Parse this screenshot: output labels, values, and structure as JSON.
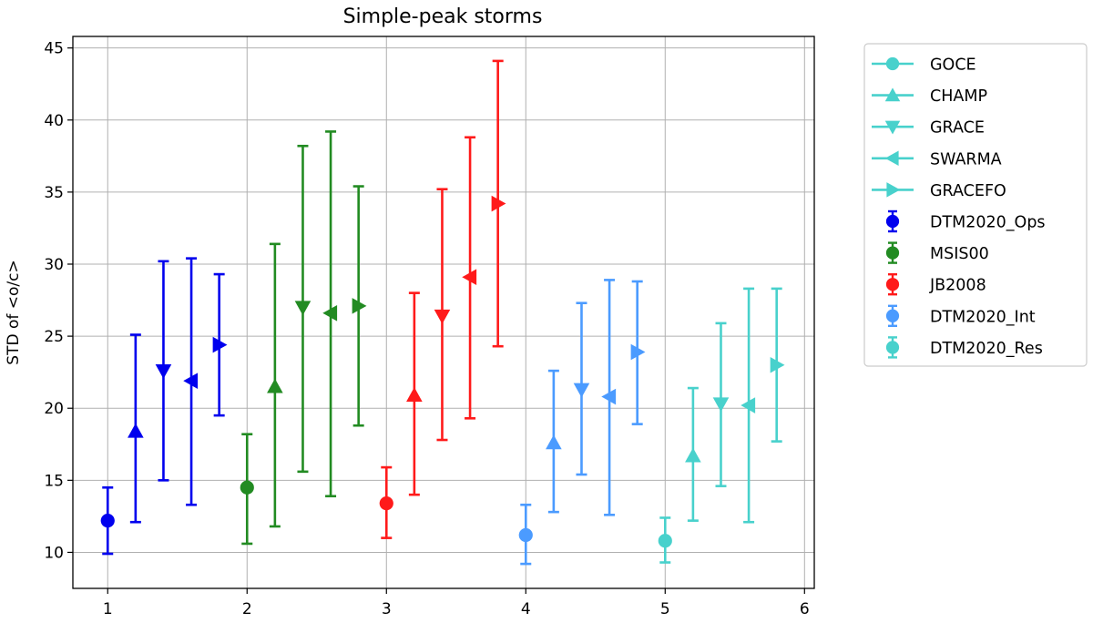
{
  "chart_data": {
    "type": "scatter",
    "title": "Simple-peak storms",
    "xlabel": "",
    "ylabel": "STD of <o/c>",
    "xlim": [
      0.75,
      6.07
    ],
    "ylim": [
      7.5,
      45.8
    ],
    "xticks": [
      1,
      2,
      3,
      4,
      5,
      6
    ],
    "yticks": [
      10,
      15,
      20,
      25,
      30,
      35,
      40,
      45
    ],
    "grid": true,
    "legend_position": "outside-top-right",
    "satellites": [
      {
        "name": "GOCE",
        "marker": "circle"
      },
      {
        "name": "CHAMP",
        "marker": "triangle-up"
      },
      {
        "name": "GRACE",
        "marker": "triangle-down"
      },
      {
        "name": "SWARMA",
        "marker": "triangle-left"
      },
      {
        "name": "GRACEFO",
        "marker": "triangle-right"
      }
    ],
    "satellite_legend_color": "#48d1cc",
    "series": [
      {
        "name": "DTM2020_Ops",
        "color": "#0000ee",
        "points": [
          {
            "x": 1.0,
            "y": 12.2,
            "lo": 9.9,
            "hi": 14.5
          },
          {
            "x": 1.2,
            "y": 18.4,
            "lo": 12.1,
            "hi": 25.1
          },
          {
            "x": 1.4,
            "y": 22.6,
            "lo": 15.0,
            "hi": 30.2
          },
          {
            "x": 1.6,
            "y": 21.9,
            "lo": 13.3,
            "hi": 30.4
          },
          {
            "x": 1.8,
            "y": 24.4,
            "lo": 19.5,
            "hi": 29.3
          }
        ]
      },
      {
        "name": "MSIS00",
        "color": "#228b22",
        "points": [
          {
            "x": 2.0,
            "y": 14.5,
            "lo": 10.6,
            "hi": 18.2
          },
          {
            "x": 2.2,
            "y": 21.5,
            "lo": 11.8,
            "hi": 31.4
          },
          {
            "x": 2.4,
            "y": 27.0,
            "lo": 15.6,
            "hi": 38.2
          },
          {
            "x": 2.6,
            "y": 26.6,
            "lo": 13.9,
            "hi": 39.2
          },
          {
            "x": 2.8,
            "y": 27.1,
            "lo": 18.8,
            "hi": 35.4
          }
        ]
      },
      {
        "name": "JB2008",
        "color": "#ff1a1a",
        "points": [
          {
            "x": 3.0,
            "y": 13.4,
            "lo": 11.0,
            "hi": 15.9
          },
          {
            "x": 3.2,
            "y": 20.9,
            "lo": 14.0,
            "hi": 28.0
          },
          {
            "x": 3.4,
            "y": 26.4,
            "lo": 17.8,
            "hi": 35.2
          },
          {
            "x": 3.6,
            "y": 29.1,
            "lo": 19.3,
            "hi": 38.8
          },
          {
            "x": 3.8,
            "y": 34.2,
            "lo": 24.3,
            "hi": 44.1
          }
        ]
      },
      {
        "name": "DTM2020_Int",
        "color": "#4b9bff",
        "points": [
          {
            "x": 4.0,
            "y": 11.2,
            "lo": 9.2,
            "hi": 13.3
          },
          {
            "x": 4.2,
            "y": 17.6,
            "lo": 12.8,
            "hi": 22.6
          },
          {
            "x": 4.4,
            "y": 21.3,
            "lo": 15.4,
            "hi": 27.3
          },
          {
            "x": 4.6,
            "y": 20.8,
            "lo": 12.6,
            "hi": 28.9
          },
          {
            "x": 4.8,
            "y": 23.9,
            "lo": 18.9,
            "hi": 28.8
          }
        ]
      },
      {
        "name": "DTM2020_Res",
        "color": "#48d1cc",
        "points": [
          {
            "x": 5.0,
            "y": 10.8,
            "lo": 9.3,
            "hi": 12.4
          },
          {
            "x": 5.2,
            "y": 16.7,
            "lo": 12.2,
            "hi": 21.4
          },
          {
            "x": 5.4,
            "y": 20.3,
            "lo": 14.6,
            "hi": 25.9
          },
          {
            "x": 5.6,
            "y": 20.2,
            "lo": 12.1,
            "hi": 28.3
          },
          {
            "x": 5.8,
            "y": 23.0,
            "lo": 17.7,
            "hi": 28.3
          }
        ]
      }
    ]
  }
}
